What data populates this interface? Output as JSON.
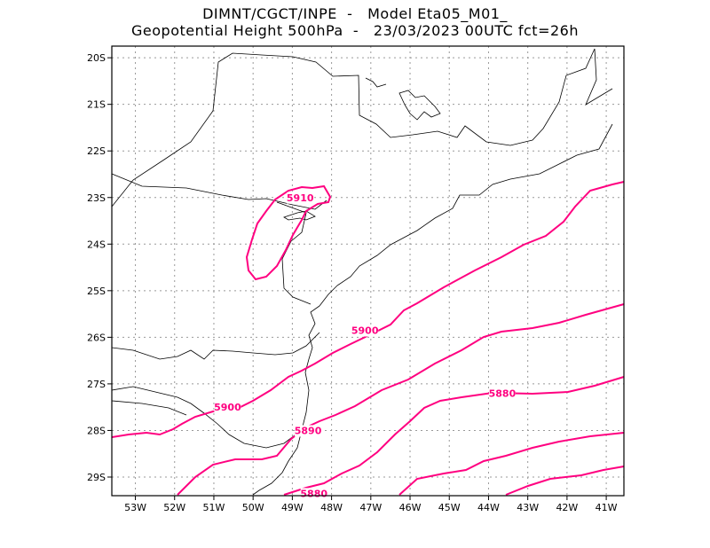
{
  "title": {
    "line1": "DIMNT/CGCT/INPE  -   Model Eta05_M01_",
    "line2": "Geopotential Height 500hPa  -   23/03/2023 00UTC fct=26h"
  },
  "map": {
    "lon_range": [
      -53.6,
      -40.55
    ],
    "lat_range": [
      -29.4,
      -19.75
    ],
    "x_ticks": [
      "53W",
      "52W",
      "51W",
      "50W",
      "49W",
      "48W",
      "47W",
      "46W",
      "45W",
      "44W",
      "43W",
      "42W",
      "41W"
    ],
    "y_ticks": [
      "20S",
      "21S",
      "22S",
      "23S",
      "24S",
      "25S",
      "26S",
      "27S",
      "28S",
      "29S"
    ],
    "grid": true,
    "contour_color": "#ff0080",
    "boundary_color": "#000000"
  },
  "contours": [
    {
      "value": "5910",
      "label_lonlat": [
        -48.8,
        -23.0
      ]
    },
    {
      "value": "5900",
      "label_lonlat": [
        -47.15,
        -25.85
      ]
    },
    {
      "value": "5900",
      "label_lonlat": [
        -50.65,
        -27.5
      ]
    },
    {
      "value": "5890",
      "label_lonlat": [
        -48.6,
        -28.0
      ]
    },
    {
      "value": "5880",
      "label_lonlat": [
        -43.65,
        -27.2
      ]
    },
    {
      "value": "5880",
      "label_lonlat": [
        -48.45,
        -29.35
      ]
    }
  ]
}
